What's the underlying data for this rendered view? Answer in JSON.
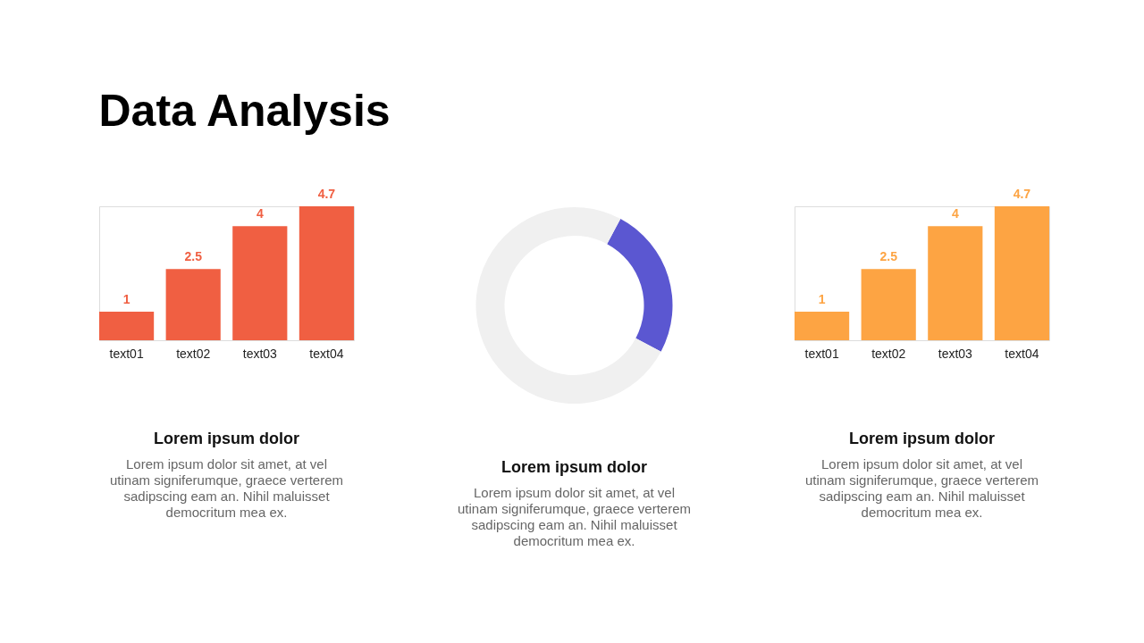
{
  "chart_data": [
    {
      "type": "other",
      "title": "Data Analysis"
    },
    {
      "type": "bar",
      "title": "Lorem ipsum dolor",
      "annotations": [
        "Lorem ipsum dolor sit amet, at vel utinam signiferumque, graece verterem sadipscing eam an. Nihil maluisset democritum mea ex."
      ],
      "categories": [
        "text01",
        "text02",
        "text03",
        "text04"
      ],
      "values": [
        1,
        2.5,
        4,
        4.7
      ],
      "colors": [
        "#f05f42",
        "#f05f42",
        "#f05f42",
        "#f05f42"
      ],
      "data_labels": true,
      "tick_labels": "x"
    },
    {
      "type": "donut",
      "title": "Lorem ipsum dolor",
      "annotations": [
        "Lorem ipsum dolor sit amet, at vel utinam signiferumque, graece verterem sadipscing eam an. Nihil maluisset democritum mea ex."
      ],
      "categories": [
        null,
        null
      ],
      "values": [
        25,
        75
      ],
      "colors": [
        "#5b57d1",
        "#f0f0f0"
      ]
    },
    {
      "type": "bar",
      "title": "Lorem ipsum dolor",
      "annotations": [
        "Lorem ipsum dolor sit amet, at vel utinam signiferumque, graece verterem sadipscing eam an. Nihil maluisset democritum mea ex."
      ],
      "categories": [
        "text01",
        "text02",
        "text03",
        "text04"
      ],
      "values": [
        1,
        2.5,
        4,
        4.7
      ],
      "colors": [
        "#fda443",
        "#fda443",
        "#fda443",
        "#fda443"
      ],
      "data_labels": true,
      "tick_labels": "x"
    }
  ]
}
